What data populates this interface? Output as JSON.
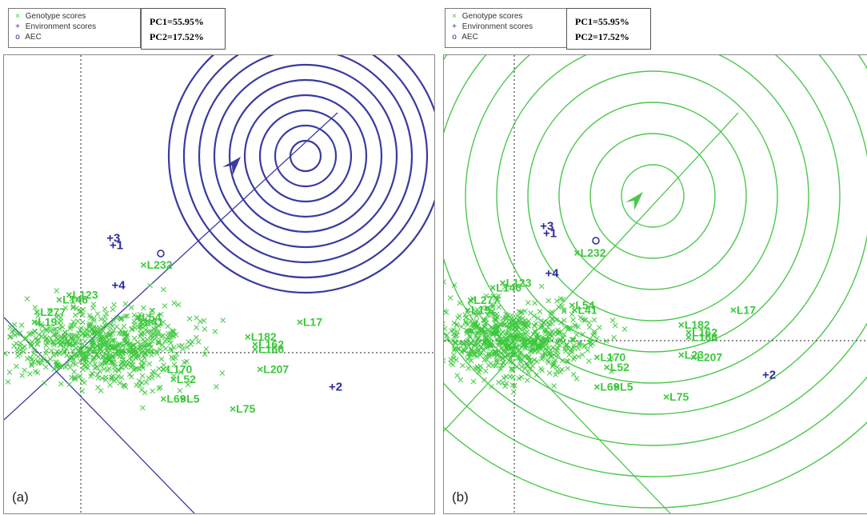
{
  "legend": {
    "genotype_label": "Genotype scores",
    "environment_label": "Environment scores",
    "aec_label": "AEC",
    "genotype_symbol": "×",
    "environment_symbol": "+",
    "aec_symbol": "o"
  },
  "pc_box": {
    "pc1": "PC1=55.95%",
    "pc2": "PC2=17.52%"
  },
  "colors": {
    "genotype": "#3cc83c",
    "environment": "#2b2b9a",
    "ring_a": "#3a3aa0",
    "ring_b": "#4cc84c",
    "grid": "#222222"
  },
  "chart_data": [
    {
      "panel_label": "(a)",
      "type": "scatter",
      "ring_color": "#3a3aa0",
      "genotypes": [
        {
          "label": "L232",
          "x": 1.2,
          "y": 1.75
        },
        {
          "label": "L17",
          "x": 4.35,
          "y": 0.6
        },
        {
          "label": "L75",
          "x": 3.0,
          "y": -1.15
        },
        {
          "label": "L5",
          "x": 2.0,
          "y": -0.95
        },
        {
          "label": "L69",
          "x": 1.6,
          "y": -0.95
        },
        {
          "label": "L182",
          "x": 3.3,
          "y": 0.3
        },
        {
          "label": "L162",
          "x": 3.45,
          "y": 0.15
        },
        {
          "label": "L166",
          "x": 3.45,
          "y": 0.05
        },
        {
          "label": "L207",
          "x": 3.55,
          "y": -0.35
        },
        {
          "label": "L277",
          "x": -0.95,
          "y": 0.8
        },
        {
          "label": "L19",
          "x": -1.0,
          "y": 0.6
        },
        {
          "label": "L54",
          "x": 1.1,
          "y": 0.7
        },
        {
          "label": "L41",
          "x": 1.15,
          "y": 0.6
        },
        {
          "label": "L146",
          "x": -0.5,
          "y": 1.05
        },
        {
          "label": "L123",
          "x": -0.3,
          "y": 1.15
        },
        {
          "label": "L52",
          "x": 1.8,
          "y": -0.55
        },
        {
          "label": "L170",
          "x": 1.6,
          "y": -0.35
        }
      ],
      "environments": [
        {
          "label": "3",
          "x": 0.52,
          "y": 2.3
        },
        {
          "label": "1",
          "x": 0.58,
          "y": 2.15
        },
        {
          "label": "4",
          "x": 0.62,
          "y": 1.35
        },
        {
          "label": "2",
          "x": 5.0,
          "y": -0.7
        }
      ]
    },
    {
      "panel_label": "(b)",
      "type": "scatter",
      "ring_color": "#4cc84c",
      "genotypes": [
        {
          "label": "L232",
          "x": 1.2,
          "y": 1.75
        },
        {
          "label": "L17",
          "x": 4.35,
          "y": 0.6
        },
        {
          "label": "L75",
          "x": 3.0,
          "y": -1.15
        },
        {
          "label": "L5",
          "x": 2.0,
          "y": -0.95
        },
        {
          "label": "L69",
          "x": 1.6,
          "y": -0.95
        },
        {
          "label": "L182",
          "x": 3.3,
          "y": 0.3
        },
        {
          "label": "L162",
          "x": 3.45,
          "y": 0.15
        },
        {
          "label": "L166",
          "x": 3.45,
          "y": 0.05
        },
        {
          "label": "L207",
          "x": 3.55,
          "y": -0.35
        },
        {
          "label": "L23",
          "x": 3.3,
          "y": -0.3
        },
        {
          "label": "L277",
          "x": -0.95,
          "y": 0.8
        },
        {
          "label": "L19",
          "x": -1.0,
          "y": 0.6
        },
        {
          "label": "L54",
          "x": 1.1,
          "y": 0.7
        },
        {
          "label": "L41",
          "x": 1.15,
          "y": 0.6
        },
        {
          "label": "L146",
          "x": -0.5,
          "y": 1.05
        },
        {
          "label": "L123",
          "x": -0.3,
          "y": 1.15
        },
        {
          "label": "L52",
          "x": 1.8,
          "y": -0.55
        },
        {
          "label": "L170",
          "x": 1.6,
          "y": -0.35
        }
      ],
      "environments": [
        {
          "label": "3",
          "x": 0.52,
          "y": 2.3
        },
        {
          "label": "1",
          "x": 0.58,
          "y": 2.15
        },
        {
          "label": "4",
          "x": 0.62,
          "y": 1.35
        },
        {
          "label": "2",
          "x": 5.0,
          "y": -0.7
        }
      ]
    }
  ]
}
